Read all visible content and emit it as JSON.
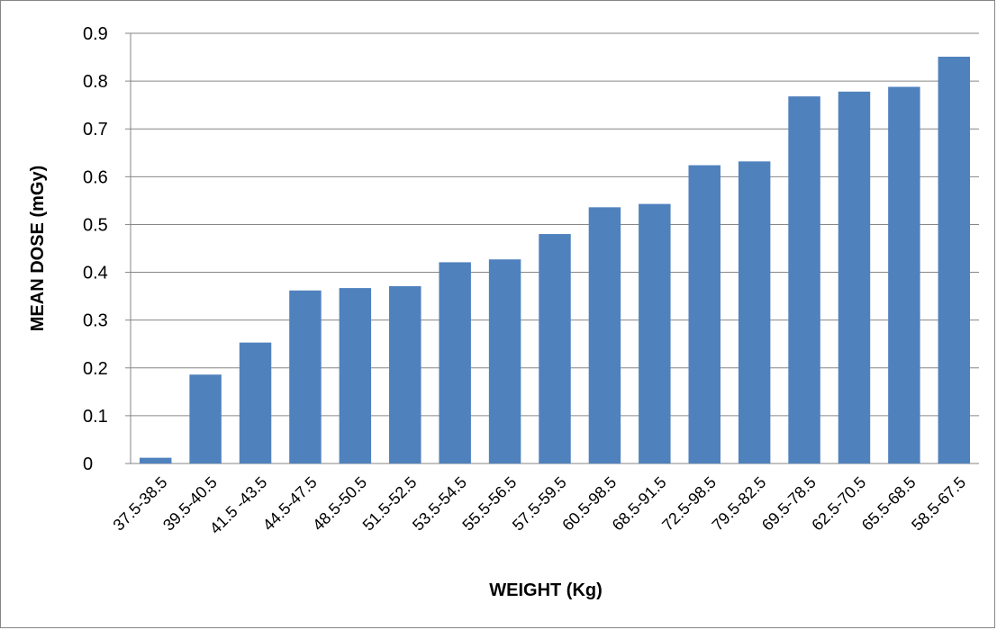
{
  "chart_data": {
    "type": "bar",
    "title": "",
    "xlabel": "WEIGHT (Kg)",
    "ylabel": "MEAN DOSE (mGy)",
    "ylim": [
      0,
      0.9
    ],
    "yticks": [
      "0",
      "0.1",
      "0.2",
      "0.3",
      "0.4",
      "0.5",
      "0.6",
      "0.7",
      "0.8",
      "0.9"
    ],
    "grid": true,
    "legend": "none",
    "bar_color": "#4f81bd",
    "categories": [
      "37.5-38.5",
      "39.5-40.5",
      "41.5 -43.5",
      "44.5-47.5",
      "48.5-50.5",
      "51.5-52.5",
      "53.5-54.5",
      "55.5-56.5",
      "57.5-59.5",
      "60.5-98.5",
      "68.5-91.5",
      "72.5-98.5",
      "79.5-82.5",
      "69.5-78.5",
      "62.5-70.5",
      "65.5-68.5",
      "58.5-67.5"
    ],
    "values": [
      0.012,
      0.186,
      0.253,
      0.362,
      0.367,
      0.371,
      0.421,
      0.427,
      0.48,
      0.536,
      0.543,
      0.624,
      0.632,
      0.768,
      0.778,
      0.788,
      0.851
    ]
  }
}
